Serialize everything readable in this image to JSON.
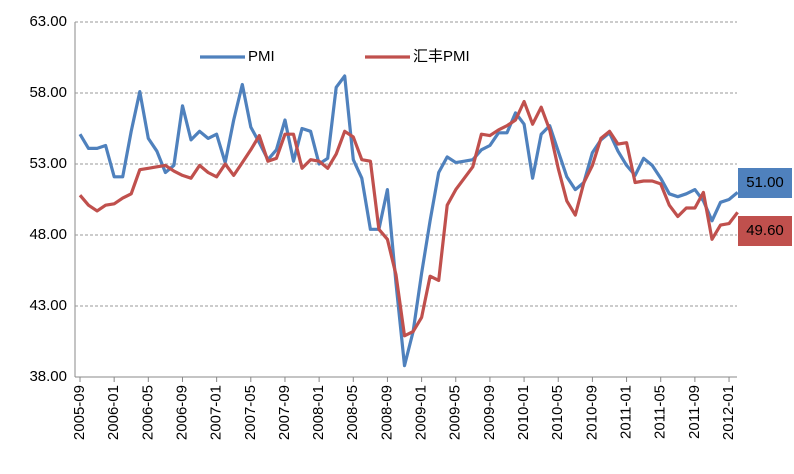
{
  "chart_data": {
    "type": "line",
    "categories": [
      "2005-09",
      null,
      null,
      null,
      "2006-01",
      null,
      null,
      null,
      "2006-05",
      null,
      null,
      null,
      "2006-09",
      null,
      null,
      null,
      "2007-01",
      null,
      null,
      null,
      "2007-05",
      null,
      null,
      null,
      "2007-09",
      null,
      null,
      null,
      "2008-01",
      null,
      null,
      null,
      "2008-05",
      null,
      null,
      null,
      "2008-09",
      null,
      null,
      null,
      "2009-01",
      null,
      null,
      null,
      "2009-05",
      null,
      null,
      null,
      "2009-09",
      null,
      null,
      null,
      "2010-01",
      null,
      null,
      null,
      "2010-05",
      null,
      null,
      null,
      "2010-09",
      null,
      null,
      null,
      "2011-01",
      null,
      null,
      null,
      "2011-05",
      null,
      null,
      null,
      "2011-09",
      null,
      null,
      null,
      "2012-01",
      null
    ],
    "series": [
      {
        "name": "PMI",
        "color": "#4f81bd",
        "values": [
          55.1,
          54.1,
          54.1,
          54.3,
          52.1,
          52.1,
          55.3,
          58.1,
          54.8,
          53.9,
          52.4,
          52.9,
          57.1,
          54.7,
          55.3,
          54.8,
          55.1,
          53.1,
          56.1,
          58.6,
          55.6,
          54.5,
          53.3,
          54.0,
          56.1,
          53.2,
          55.5,
          55.3,
          53.0,
          53.4,
          58.4,
          59.2,
          53.3,
          52.0,
          48.4,
          48.4,
          51.2,
          44.6,
          38.8,
          41.2,
          45.3,
          49.0,
          52.4,
          53.5,
          53.1,
          53.2,
          53.3,
          54.0,
          54.3,
          55.2,
          55.2,
          56.6,
          55.8,
          52.0,
          55.1,
          55.7,
          53.9,
          52.1,
          51.2,
          51.7,
          53.8,
          54.7,
          55.2,
          53.9,
          52.9,
          52.2,
          53.4,
          52.9,
          52.0,
          50.9,
          50.7,
          50.9,
          51.2,
          50.4,
          49.0,
          50.3,
          50.5,
          51.0
        ],
        "end_label": "51.00"
      },
      {
        "name": "汇丰PMI",
        "color": "#c0504d",
        "values": [
          50.8,
          50.1,
          49.7,
          50.1,
          50.2,
          50.6,
          50.9,
          52.6,
          52.7,
          52.8,
          52.9,
          52.5,
          52.2,
          52.0,
          52.9,
          52.4,
          52.1,
          53.0,
          52.2,
          53.1,
          54.0,
          55.0,
          53.2,
          53.4,
          55.1,
          55.1,
          52.7,
          53.3,
          53.2,
          52.7,
          53.7,
          55.3,
          54.9,
          53.3,
          53.2,
          48.4,
          47.7,
          45.2,
          40.9,
          41.2,
          42.2,
          45.1,
          44.8,
          50.1,
          51.2,
          52.0,
          52.8,
          55.1,
          55.0,
          55.4,
          55.7,
          56.1,
          57.4,
          55.8,
          57.0,
          55.4,
          52.7,
          50.4,
          49.4,
          51.7,
          52.9,
          54.8,
          55.3,
          54.4,
          54.5,
          51.7,
          51.8,
          51.8,
          51.6,
          50.1,
          49.3,
          49.9,
          49.9,
          51.0,
          47.7,
          48.7,
          48.8,
          49.6
        ],
        "end_label": "49.60"
      }
    ],
    "ylim": [
      38,
      63
    ],
    "yticks": [
      {
        "value": 38,
        "label": "38.00"
      },
      {
        "value": 43,
        "label": "43.00"
      },
      {
        "value": 48,
        "label": "48.00"
      },
      {
        "value": 53,
        "label": "53.00"
      },
      {
        "value": 58,
        "label": "58.00"
      },
      {
        "value": 63,
        "label": "63.00"
      }
    ],
    "grid": true
  }
}
